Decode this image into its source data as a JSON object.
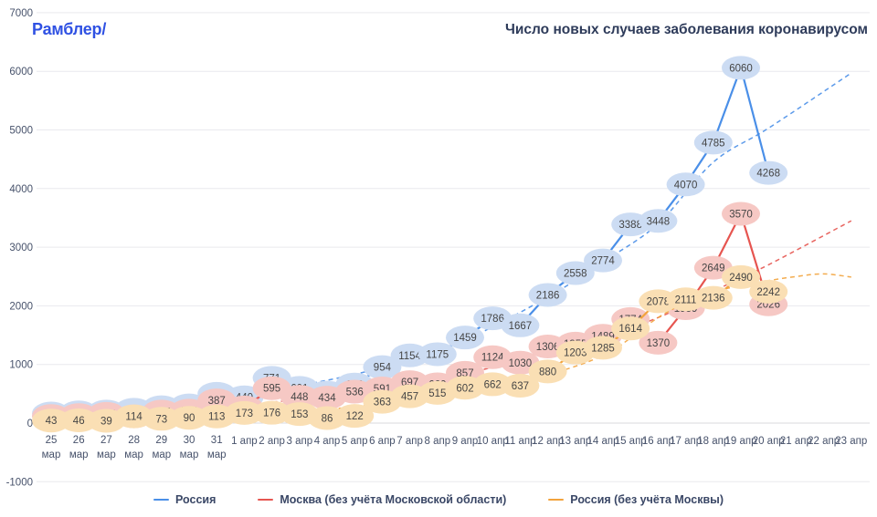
{
  "page": {
    "logo": "Рамблер/",
    "title": "Число новых случаев заболевания коронавирусом"
  },
  "palette": {
    "logo_blue": "#2f51e3",
    "title_text": "#2e3b5a",
    "axis_text": "#47526b",
    "grid": "#e9e9ee",
    "zero_line": "#d9d9de",
    "bubble_text": "#454545",
    "legend_text": "#3a4766"
  },
  "chart_data": {
    "type": "line",
    "title": "Число новых случаев заболевания коронавирусом",
    "x_labels": [
      "25 мар",
      "26 мар",
      "27 мар",
      "28 мар",
      "29 мар",
      "30 мар",
      "31 мар",
      "1 апр",
      "2 апр",
      "3 апр",
      "4 апр",
      "5 апр",
      "6 апр",
      "7 апр",
      "8 апр",
      "9 апр",
      "10 апр",
      "11 апр",
      "12 апр",
      "13 апр",
      "14 апр",
      "15 апр",
      "16 апр",
      "17 апр",
      "18 апр",
      "19 апр",
      "20 апр",
      "21 апр",
      "22 апр",
      "23 апр"
    ],
    "y_ticks": [
      7000,
      6000,
      5000,
      4000,
      3000,
      2000,
      1000,
      0,
      -1000
    ],
    "ylim": [
      -1000,
      7000
    ],
    "grid": true,
    "legend_position": "bottom",
    "marker_style": "value-bubble",
    "series": [
      {
        "name": "Россия",
        "line_color": "#4a8fe8",
        "fill": "#ccdcf3",
        "values": [
          163,
          182,
          196,
          228,
          270,
          302,
          500,
          440,
          771,
          601,
          520,
          658,
          954,
          1154,
          1175,
          1459,
          1786,
          1667,
          2186,
          2558,
          2774,
          3388,
          3448,
          4070,
          4785,
          6060,
          4268,
          null,
          null,
          null
        ],
        "trend": [
          [
            0,
            170
          ],
          [
            3,
            270
          ],
          [
            6,
            430
          ],
          [
            9,
            640
          ],
          [
            12,
            950
          ],
          [
            15,
            1420
          ],
          [
            18,
            2150
          ],
          [
            20,
            2750
          ],
          [
            22,
            3400
          ],
          [
            24,
            4450
          ],
          [
            26,
            5030
          ],
          [
            29,
            5970
          ]
        ]
      },
      {
        "name": "Москва (без учёта Московской области)",
        "line_color": "#e65550",
        "fill": "#f6c8c4",
        "values": [
          120,
          136,
          157,
          114,
          197,
          212,
          387,
          267,
          595,
          448,
          434,
          536,
          591,
          697,
          660,
          857,
          1124,
          1030,
          1306,
          1355,
          1489,
          1774,
          1370,
          1959,
          2649,
          3570,
          2026,
          null,
          null,
          null
        ],
        "trend": [
          [
            0,
            120
          ],
          [
            6,
            280
          ],
          [
            12,
            560
          ],
          [
            16,
            950
          ],
          [
            19,
            1300
          ],
          [
            22,
            1800
          ],
          [
            24,
            2250
          ],
          [
            26,
            2700
          ],
          [
            29,
            3450
          ]
        ]
      },
      {
        "name": "Россия (без учёта Москвы)",
        "line_color": "#f2a33c",
        "fill": "#fadfb4",
        "values": [
          43,
          46,
          39,
          114,
          73,
          90,
          113,
          173,
          176,
          153,
          86,
          122,
          363,
          457,
          515,
          602,
          662,
          637,
          880,
          1203,
          1285,
          1614,
          2078,
          2111,
          2136,
          2490,
          2242,
          null,
          null,
          null
        ],
        "trend": [
          [
            0,
            55
          ],
          [
            4,
            90
          ],
          [
            8,
            160
          ],
          [
            12,
            330
          ],
          [
            15,
            560
          ],
          [
            18,
            830
          ],
          [
            20,
            1150
          ],
          [
            21,
            1450
          ],
          [
            22,
            1800
          ],
          [
            23,
            2050
          ],
          [
            24,
            2230
          ],
          [
            25,
            2350
          ],
          [
            26,
            2430
          ],
          [
            27,
            2500
          ],
          [
            28,
            2545
          ],
          [
            29,
            2490
          ]
        ]
      }
    ]
  }
}
